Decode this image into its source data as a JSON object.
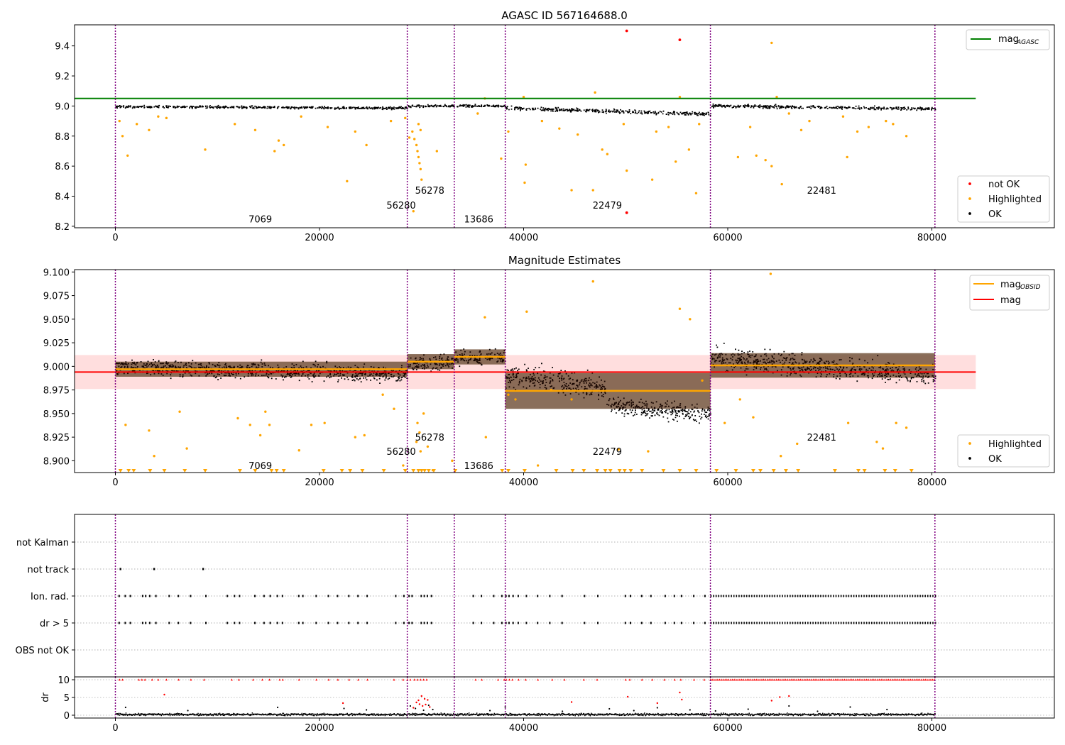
{
  "figure": {
    "title": "AGASC ID 567164688.0"
  },
  "colors": {
    "ok": "#000000",
    "highlighted": "#ffa500",
    "not_ok": "#ff0000",
    "agasc_line": "#008000",
    "obs_line": "#ffa500",
    "mag_line": "#ff0000",
    "obs_boundary": "#800080"
  },
  "chart_data": [
    {
      "type": "scatter",
      "title": "",
      "xlim": [
        -4000,
        92000
      ],
      "ylim": [
        8.19,
        9.54
      ],
      "x_ticks": [
        0,
        20000,
        40000,
        60000,
        80000
      ],
      "x_tick_labels": [
        "0",
        "20000",
        "40000",
        "60000",
        "80000"
      ],
      "y_ticks": [
        8.2,
        8.4,
        8.6,
        8.8,
        9.0,
        9.2,
        9.4
      ],
      "y_tick_labels": [
        "8.2",
        "8.4",
        "8.6",
        "8.8",
        "9.0",
        "9.2",
        "9.4"
      ],
      "obs_boundaries": [
        0,
        28600,
        33200,
        38200,
        58300,
        80300
      ],
      "obs_labels": [
        {
          "text": "7069",
          "x": 14200,
          "y": 8.25
        },
        {
          "text": "56280",
          "x": 28000,
          "y": 8.34
        },
        {
          "text": "56278",
          "x": 30800,
          "y": 8.44
        },
        {
          "text": "13686",
          "x": 35600,
          "y": 8.25
        },
        {
          "text": "22479",
          "x": 48200,
          "y": 8.34
        },
        {
          "text": "22481",
          "x": 69200,
          "y": 8.44
        }
      ],
      "mag_agasc": 9.05,
      "segments": [
        {
          "x0": 0,
          "x1": 28600,
          "m0": 9.0,
          "m1": 8.99,
          "spread": 0.008
        },
        {
          "x0": 28600,
          "x1": 33200,
          "m0": 9.0,
          "m1": 9.005,
          "spread": 0.008
        },
        {
          "x0": 33200,
          "x1": 38200,
          "m0": 9.005,
          "m1": 9.005,
          "spread": 0.008
        },
        {
          "x0": 38200,
          "x1": 58300,
          "m0": 8.99,
          "m1": 8.95,
          "spread": 0.012
        },
        {
          "x0": 58300,
          "x1": 80300,
          "m0": 9.005,
          "m1": 8.985,
          "spread": 0.01
        }
      ],
      "highlighted_points": [
        [
          400,
          8.9
        ],
        [
          700,
          8.8
        ],
        [
          1200,
          8.67
        ],
        [
          2100,
          8.88
        ],
        [
          3300,
          8.84
        ],
        [
          4200,
          8.93
        ],
        [
          5000,
          8.92
        ],
        [
          8800,
          8.71
        ],
        [
          11700,
          8.88
        ],
        [
          13700,
          8.84
        ],
        [
          15600,
          8.7
        ],
        [
          16000,
          8.77
        ],
        [
          16500,
          8.74
        ],
        [
          18200,
          8.93
        ],
        [
          20800,
          8.86
        ],
        [
          22700,
          8.5
        ],
        [
          23500,
          8.83
        ],
        [
          24600,
          8.74
        ],
        [
          27000,
          8.9
        ],
        [
          28400,
          8.92
        ],
        [
          29100,
          8.83
        ],
        [
          29300,
          8.78
        ],
        [
          29500,
          8.74
        ],
        [
          29600,
          8.7
        ],
        [
          29700,
          8.66
        ],
        [
          29800,
          8.62
        ],
        [
          29900,
          8.58
        ],
        [
          30000,
          8.51
        ],
        [
          29700,
          8.88
        ],
        [
          29900,
          8.84
        ],
        [
          28800,
          8.79
        ],
        [
          29200,
          8.3
        ],
        [
          31500,
          8.7
        ],
        [
          35500,
          8.95
        ],
        [
          36200,
          9.05
        ],
        [
          37800,
          8.65
        ],
        [
          38500,
          8.83
        ],
        [
          40000,
          9.06
        ],
        [
          40200,
          8.61
        ],
        [
          40100,
          8.49
        ],
        [
          41800,
          8.9
        ],
        [
          43500,
          8.85
        ],
        [
          44700,
          8.44
        ],
        [
          45300,
          8.81
        ],
        [
          46800,
          8.44
        ],
        [
          47000,
          9.09
        ],
        [
          47700,
          8.71
        ],
        [
          48200,
          8.68
        ],
        [
          49800,
          8.88
        ],
        [
          50100,
          8.57
        ],
        [
          52600,
          8.51
        ],
        [
          53000,
          8.83
        ],
        [
          54200,
          8.86
        ],
        [
          54900,
          8.63
        ],
        [
          55300,
          9.06
        ],
        [
          56200,
          8.71
        ],
        [
          56900,
          8.42
        ],
        [
          57200,
          8.88
        ],
        [
          61000,
          8.66
        ],
        [
          62200,
          8.86
        ],
        [
          62800,
          8.67
        ],
        [
          63700,
          8.64
        ],
        [
          64300,
          8.6
        ],
        [
          64300,
          9.42
        ],
        [
          64800,
          9.06
        ],
        [
          65300,
          8.48
        ],
        [
          66000,
          8.95
        ],
        [
          67200,
          8.84
        ],
        [
          68000,
          8.9
        ],
        [
          71300,
          8.93
        ],
        [
          71700,
          8.66
        ],
        [
          72700,
          8.83
        ],
        [
          73800,
          8.86
        ],
        [
          75500,
          8.9
        ],
        [
          76200,
          8.88
        ],
        [
          77500,
          8.8
        ]
      ],
      "not_ok_points": [
        [
          50100,
          9.5
        ],
        [
          55300,
          9.44
        ],
        [
          50100,
          8.29
        ]
      ],
      "legend_lines": [
        {
          "label": "mag",
          "sub": "AGASC",
          "color": "#008000"
        }
      ],
      "legend_markers": [
        {
          "label": "not OK",
          "color": "#ff0000"
        },
        {
          "label": "Highlighted",
          "color": "#ffa500"
        },
        {
          "label": "OK",
          "color": "#000000"
        }
      ]
    },
    {
      "type": "scatter",
      "title": "Magnitude Estimates",
      "xlim": [
        -4000,
        92000
      ],
      "ylim": [
        8.8875,
        9.1025
      ],
      "x_ticks": [
        0,
        20000,
        40000,
        60000,
        80000
      ],
      "x_tick_labels": [
        "0",
        "20000",
        "40000",
        "60000",
        "80000"
      ],
      "y_ticks": [
        8.9,
        8.925,
        8.95,
        8.975,
        9.0,
        9.025,
        9.05,
        9.075,
        9.1
      ],
      "y_tick_labels": [
        "8.900",
        "8.925",
        "8.950",
        "8.975",
        "9.000",
        "9.025",
        "9.050",
        "9.075",
        "9.100"
      ],
      "obs_boundaries": [
        0,
        28600,
        33200,
        38200,
        58300,
        80300
      ],
      "obs_labels": [
        {
          "text": "7069",
          "x": 14200,
          "y": 8.895
        },
        {
          "text": "56280",
          "x": 28000,
          "y": 8.91
        },
        {
          "text": "56278",
          "x": 30800,
          "y": 8.925
        },
        {
          "text": "13686",
          "x": 35600,
          "y": 8.895
        },
        {
          "text": "22479",
          "x": 48200,
          "y": 8.91
        },
        {
          "text": "22481",
          "x": 69200,
          "y": 8.925
        }
      ],
      "mag": 8.994,
      "mag_band": [
        8.976,
        9.012
      ],
      "obs_mags": [
        {
          "x0": 0,
          "x1": 28600,
          "mag": 8.997,
          "lo": 8.989,
          "hi": 9.005
        },
        {
          "x0": 28600,
          "x1": 33200,
          "mag": 9.005,
          "lo": 8.997,
          "hi": 9.013
        },
        {
          "x0": 33200,
          "x1": 38200,
          "mag": 9.01,
          "lo": 9.002,
          "hi": 9.018
        },
        {
          "x0": 38200,
          "x1": 58300,
          "mag": 8.974,
          "lo": 8.955,
          "hi": 8.993
        },
        {
          "x0": 58300,
          "x1": 80300,
          "mag": 9.001,
          "lo": 8.988,
          "hi": 9.014
        }
      ],
      "segments": [
        {
          "x0": 0,
          "x1": 28600,
          "m0": 9.0,
          "m1": 8.992,
          "spread": 0.008
        },
        {
          "x0": 28600,
          "x1": 33200,
          "m0": 9.003,
          "m1": 9.006,
          "spread": 0.008
        },
        {
          "x0": 33200,
          "x1": 38200,
          "m0": 9.01,
          "m1": 9.01,
          "spread": 0.008
        },
        {
          "x0": 38200,
          "x1": 48000,
          "m0": 8.99,
          "m1": 8.978,
          "spread": 0.012
        },
        {
          "x0": 48000,
          "x1": 58300,
          "m0": 8.96,
          "m1": 8.95,
          "spread": 0.009
        },
        {
          "x0": 58300,
          "x1": 80300,
          "m0": 9.01,
          "m1": 8.99,
          "spread": 0.011
        }
      ],
      "highlighted_points": [
        [
          1000,
          8.938
        ],
        [
          3300,
          8.932
        ],
        [
          3800,
          8.905
        ],
        [
          6300,
          8.952
        ],
        [
          7000,
          8.913
        ],
        [
          12000,
          8.945
        ],
        [
          13200,
          8.938
        ],
        [
          14200,
          8.927
        ],
        [
          14700,
          8.952
        ],
        [
          15100,
          8.938
        ],
        [
          18000,
          8.911
        ],
        [
          19200,
          8.938
        ],
        [
          20500,
          8.94
        ],
        [
          23500,
          8.925
        ],
        [
          24400,
          8.927
        ],
        [
          26200,
          8.97
        ],
        [
          27300,
          8.955
        ],
        [
          28200,
          8.895
        ],
        [
          29600,
          8.94
        ],
        [
          29800,
          8.93
        ],
        [
          29500,
          8.92
        ],
        [
          29900,
          8.91
        ],
        [
          30200,
          8.95
        ],
        [
          30600,
          8.915
        ],
        [
          31100,
          8.89
        ],
        [
          33000,
          8.9
        ],
        [
          36200,
          9.052
        ],
        [
          36300,
          8.925
        ],
        [
          38500,
          8.97
        ],
        [
          39200,
          8.965
        ],
        [
          40300,
          9.058
        ],
        [
          41400,
          8.895
        ],
        [
          42700,
          8.975
        ],
        [
          44700,
          8.965
        ],
        [
          46800,
          9.09
        ],
        [
          49300,
          8.912
        ],
        [
          52200,
          8.91
        ],
        [
          55300,
          9.061
        ],
        [
          56300,
          9.05
        ],
        [
          57500,
          8.985
        ],
        [
          59700,
          8.94
        ],
        [
          61200,
          8.965
        ],
        [
          62500,
          8.946
        ],
        [
          64200,
          9.098
        ],
        [
          65200,
          8.905
        ],
        [
          66800,
          8.918
        ],
        [
          71800,
          8.94
        ],
        [
          74600,
          8.92
        ],
        [
          75200,
          8.913
        ],
        [
          76500,
          8.94
        ],
        [
          77500,
          8.935
        ]
      ],
      "upper_limit_x": [
        500,
        1300,
        1800,
        3400,
        4800,
        6800,
        8800,
        12200,
        13700,
        15300,
        15800,
        16500,
        20400,
        22200,
        23000,
        24200,
        26300,
        28400,
        29200,
        29700,
        30000,
        30300,
        30700,
        31200,
        33300,
        37900,
        38500,
        40100,
        43200,
        44800,
        45900,
        47200,
        48000,
        48500,
        49400,
        49900,
        50500,
        51600,
        53700,
        55300,
        56900,
        58900,
        60800,
        62500,
        63200,
        64500,
        65700,
        66900,
        70500,
        72800,
        73400,
        75400,
        76400,
        78000
      ],
      "legend_lines": [
        {
          "label": "mag",
          "sub": "OBSID",
          "color": "#ffa500"
        },
        {
          "label": "mag",
          "sub": "",
          "color": "#ff0000"
        }
      ],
      "legend_markers": [
        {
          "label": "Highlighted",
          "color": "#ffa500"
        },
        {
          "label": "OK",
          "color": "#000000"
        }
      ]
    },
    {
      "type": "scatter",
      "title": "",
      "xlim": [
        -4000,
        92000
      ],
      "categories": [
        "not Kalman",
        "not track",
        "Ion. rad.",
        "dr > 5",
        "OBS not OK"
      ],
      "obs_boundaries": [
        0,
        28600,
        33200,
        38200,
        58300,
        80300
      ],
      "not_track_x": [
        500,
        3800,
        8600
      ],
      "ion_rad_x": [
        300,
        900,
        1400,
        2600,
        2900,
        3300,
        3900,
        5200,
        6100,
        7300,
        8800,
        10900,
        11600,
        12100,
        13600,
        14500,
        15100,
        15800,
        16300,
        17900,
        18300,
        19600,
        20800,
        21700,
        22800,
        23700,
        24600,
        27400,
        28200,
        28700,
        29000,
        29900,
        30200,
        30500,
        30900,
        35000,
        35800,
        37000,
        37800,
        38200,
        38500,
        38900,
        39400,
        40200,
        41300,
        42500,
        43700,
        45900,
        47200,
        49900,
        50400,
        51500,
        52400,
        53800,
        54700,
        55400,
        56600,
        57700
      ],
      "ion_dense_range": [
        58300,
        80300
      ],
      "ion_dense_step": 250,
      "dr_ylim": [
        -0.8,
        10.8
      ],
      "dr_ticks": [
        0,
        5,
        10
      ],
      "dr_tick_labels": [
        "0",
        "5",
        "10"
      ],
      "dr_ylabel": "dr",
      "dr_red_x": [
        400,
        700,
        2300,
        2600,
        2900,
        3600,
        4200,
        5000,
        6200,
        7400,
        8700,
        11400,
        12100,
        13500,
        14400,
        15100,
        16100,
        16400,
        18000,
        19700,
        20900,
        21800,
        22900,
        23800,
        24700,
        27300,
        28200,
        28600,
        28900,
        29300,
        29600,
        29900,
        30200,
        30500,
        35300,
        35900,
        37500,
        38100,
        38300,
        38600,
        38900,
        39500,
        40200,
        41400,
        42800,
        44000,
        45900,
        47200,
        50000,
        50400,
        51600,
        52600,
        53800,
        54800,
        55400,
        56700,
        57700
      ],
      "dr_red_scatter": [
        [
          4800,
          5.8
        ],
        [
          22300,
          3.4
        ],
        [
          29200,
          2.1
        ],
        [
          29500,
          3.6
        ],
        [
          29700,
          4.2
        ],
        [
          29800,
          3.1
        ],
        [
          30000,
          5.4
        ],
        [
          30100,
          2.6
        ],
        [
          30300,
          4.6
        ],
        [
          30400,
          3.0
        ],
        [
          30600,
          4.3
        ],
        [
          30800,
          2.3
        ],
        [
          44700,
          3.7
        ],
        [
          50200,
          5.2
        ],
        [
          53100,
          3.4
        ],
        [
          55300,
          6.4
        ],
        [
          55500,
          4.4
        ],
        [
          64300,
          4.1
        ],
        [
          65100,
          5.1
        ],
        [
          66000,
          5.4
        ]
      ],
      "dr_black_scatter": [
        [
          1000,
          2.2
        ],
        [
          7100,
          1.3
        ],
        [
          15900,
          2.2
        ],
        [
          22400,
          1.9
        ],
        [
          24600,
          1.5
        ],
        [
          28900,
          2.6
        ],
        [
          29400,
          1.9
        ],
        [
          30200,
          1.4
        ],
        [
          30700,
          2.8
        ],
        [
          31100,
          1.6
        ],
        [
          36700,
          1.3
        ],
        [
          38200,
          2.3
        ],
        [
          43800,
          1.1
        ],
        [
          48400,
          1.8
        ],
        [
          50800,
          1.3
        ],
        [
          53100,
          2.1
        ],
        [
          56300,
          1.5
        ],
        [
          58800,
          1.2
        ],
        [
          62000,
          1.7
        ],
        [
          66000,
          2.6
        ],
        [
          68800,
          1.1
        ],
        [
          72000,
          2.3
        ],
        [
          75600,
          1.6
        ]
      ]
    }
  ]
}
